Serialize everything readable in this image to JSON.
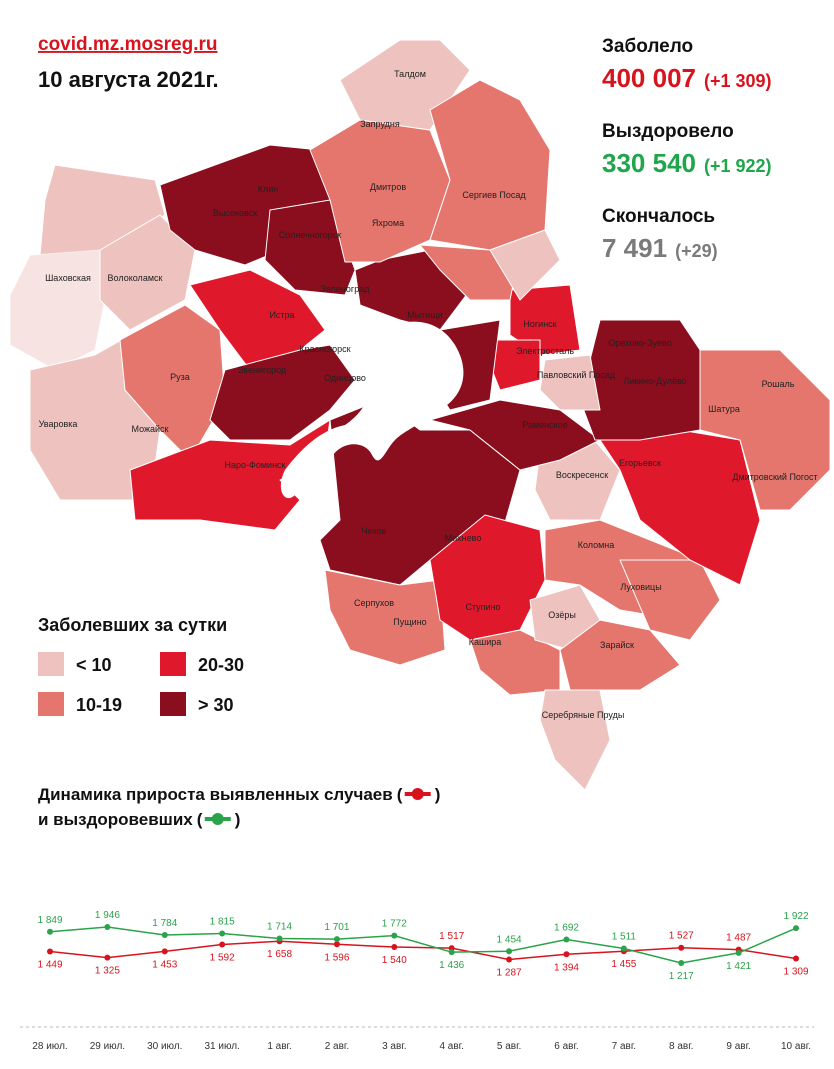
{
  "header": {
    "site": "covid.mz.mosreg.ru",
    "date": "10 августа 2021г."
  },
  "stats": [
    {
      "label": "Заболело",
      "value": "400 007",
      "delta": "(+1 309)",
      "color": "#d7141d"
    },
    {
      "label": "Выздоровело",
      "value": "330 540",
      "delta": "(+1 922)",
      "color": "#1fa54a"
    },
    {
      "label": "Скончалось",
      "value": "7 491",
      "delta": "(+29)",
      "color": "#7a7a7a"
    }
  ],
  "legend": {
    "title": "Заболевших за сутки",
    "items": [
      {
        "label": "< 10",
        "color": "#eec3bf"
      },
      {
        "label": "10-19",
        "color": "#e5766d"
      },
      {
        "label": "20-30",
        "color": "#e0182c"
      },
      {
        "label": "> 30",
        "color": "#8a0e1d"
      }
    ]
  },
  "map": {
    "towns": [
      "Талдом",
      "Запрудня",
      "Дмитров",
      "Яхрома",
      "Сергиев Посад",
      "Клин",
      "Высоковск",
      "Солнечногорск",
      "Шаховская",
      "Волоколамск",
      "Истра",
      "Зеленоград",
      "Мытищи",
      "Ногинск",
      "Электросталь",
      "Орехово-Зуево",
      "Красногорск",
      "Звенигород",
      "Одинцово",
      "Павловский Посад",
      "Ликино-Дулёво",
      "Рошаль",
      "Руза",
      "Шатура",
      "Уваровка",
      "Можайск",
      "Раменское",
      "Наро-Фоминск",
      "Воскресенск",
      "Егорьевск",
      "Дмитровский Погост",
      "Чехов",
      "Михнево",
      "Коломна",
      "Луховицы",
      "Серпухов",
      "Пущино",
      "Озёры",
      "Ступино",
      "Кашира",
      "Зарайск",
      "Серебряные Пруды"
    ]
  },
  "chart_data": {
    "type": "line",
    "legend_brackets": [
      "(",
      ")"
    ],
    "categories": [
      "28 июл.",
      "29 июл.",
      "30 июл.",
      "31 июл.",
      "1 авг.",
      "2 авг.",
      "3 авг.",
      "4 авг.",
      "5 авг.",
      "6 авг.",
      "7 авг.",
      "8 авг.",
      "9 авг.",
      "10 авг."
    ],
    "series": [
      {
        "name": "Динамика прироста выявленных случаев",
        "color": "#d7141d",
        "values": [
          1449,
          1325,
          1453,
          1592,
          1658,
          1596,
          1540,
          1517,
          1287,
          1394,
          1455,
          1527,
          1487,
          1309
        ],
        "value_labels": [
          "1 449",
          "1 325",
          "1 453",
          "1 592",
          "1 658",
          "1 596",
          "1 540",
          "1 517",
          "1 287",
          "1 394",
          "1 455",
          "1 527",
          "1 487",
          "1 309"
        ]
      },
      {
        "name": "и выздоровевших",
        "color": "#2aa34a",
        "values": [
          1849,
          1946,
          1784,
          1815,
          1714,
          1701,
          1772,
          1436,
          1454,
          1692,
          1511,
          1217,
          1421,
          1922
        ],
        "value_labels": [
          "1 849",
          "1 946",
          "1 784",
          "1 815",
          "1 714",
          "1 701",
          "1 772",
          "1 436",
          "1 454",
          "1 692",
          "1 511",
          "1 217",
          "1 421",
          "1 922"
        ]
      }
    ]
  }
}
